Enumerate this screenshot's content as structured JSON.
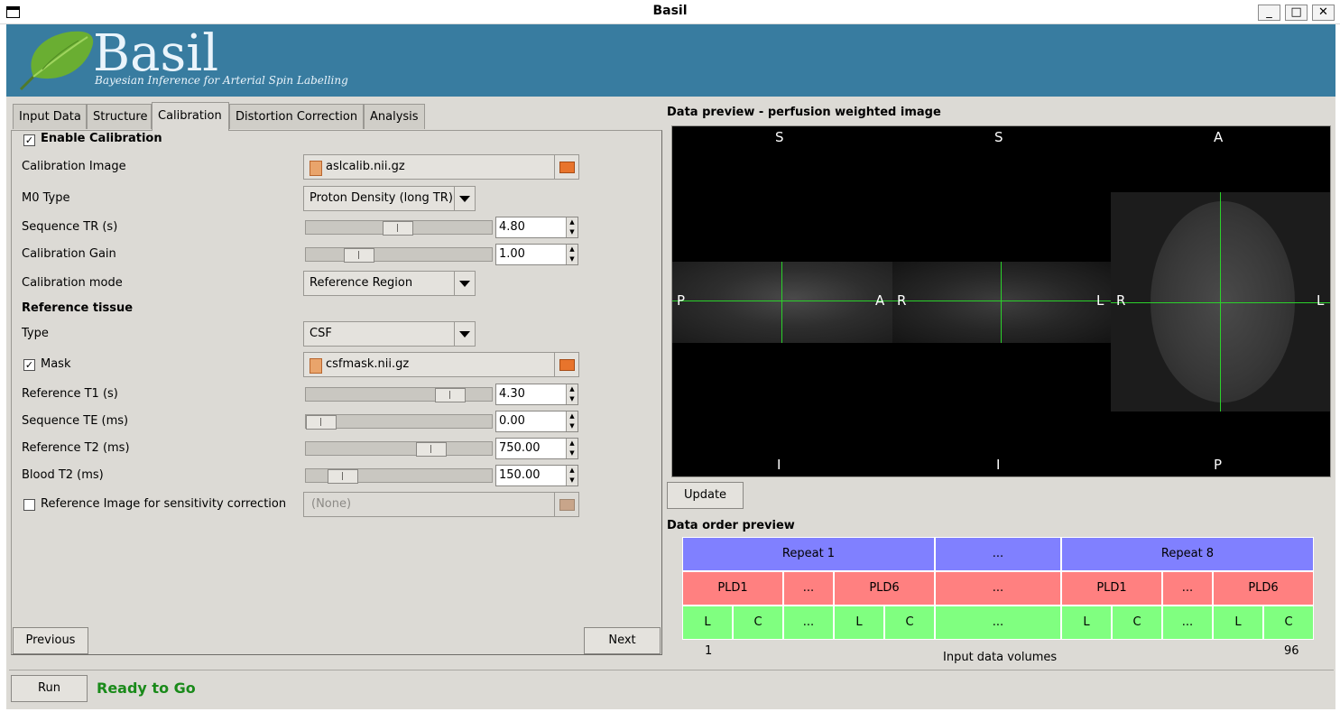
{
  "window": {
    "title": "Basil",
    "controls": {
      "minimize": "_",
      "maximize": "□",
      "close": "✕"
    }
  },
  "banner": {
    "title": "Basil",
    "subtitle": "Bayesian Inference for Arterial Spin Labelling",
    "colors": {
      "background": "#387ca0",
      "text": "#eaf4fb"
    }
  },
  "tabs": [
    {
      "label": "Input Data",
      "active": false
    },
    {
      "label": "Structure",
      "active": false
    },
    {
      "label": "Calibration",
      "active": true
    },
    {
      "label": "Distortion Correction",
      "active": false
    },
    {
      "label": "Analysis",
      "active": false
    }
  ],
  "calibration": {
    "enable": {
      "label": "Enable Calibration",
      "checked": true
    },
    "calibration_image": {
      "label": "Calibration Image",
      "value": "aslcalib.nii.gz"
    },
    "m0_type": {
      "label": "M0 Type",
      "value": "Proton Density (long TR)"
    },
    "sequence_tr": {
      "label": "Sequence TR (s)",
      "value": "4.80",
      "slider_fraction": 0.49
    },
    "calibration_gain": {
      "label": "Calibration Gain",
      "value": "1.00",
      "slider_fraction": 0.24
    },
    "calibration_mode": {
      "label": "Calibration mode",
      "value": "Reference Region"
    },
    "reference_tissue_heading": "Reference tissue",
    "type": {
      "label": "Type",
      "value": "CSF"
    },
    "mask": {
      "label": "Mask",
      "checked": true,
      "value": "csfmask.nii.gz"
    },
    "reference_t1": {
      "label": "Reference T1 (s)",
      "value": "4.30",
      "slider_fraction": 0.82
    },
    "sequence_te": {
      "label": "Sequence TE (ms)",
      "value": "0.00",
      "slider_fraction": 0.0
    },
    "reference_t2": {
      "label": "Reference T2 (ms)",
      "value": "750.00",
      "slider_fraction": 0.7
    },
    "blood_t2": {
      "label": "Blood T2 (ms)",
      "value": "150.00",
      "slider_fraction": 0.14
    },
    "reference_image_sensitivity": {
      "label": "Reference Image for sensitivity correction",
      "checked": false,
      "value": "(None)"
    }
  },
  "nav": {
    "previous": "Previous",
    "next": "Next"
  },
  "preview": {
    "title": "Data preview - perfusion weighted image",
    "orientation_labels": {
      "sag_top": "S",
      "sag_bottom": "I",
      "sag_left": "P",
      "sag_right": "A",
      "cor_top": "S",
      "cor_bottom": "I",
      "cor_left": "R",
      "cor_right": "L",
      "ax_top": "A",
      "ax_bottom": "P",
      "ax_left": "R",
      "ax_right": "L"
    },
    "update_button": "Update"
  },
  "data_order": {
    "title": "Data order preview",
    "repeats": [
      "Repeat 1",
      "...",
      "Repeat 8"
    ],
    "plds": [
      "PLD1",
      "...",
      "PLD6",
      "...",
      "PLD1",
      "...",
      "PLD6"
    ],
    "label_control": [
      "L",
      "C",
      "...",
      "L",
      "C",
      "...",
      "L",
      "C",
      "...",
      "L",
      "C"
    ],
    "axis_start": "1",
    "axis_end": "96",
    "axis_label": "Input data volumes",
    "colors": {
      "repeat": "#8080ff",
      "pld": "#ff8080",
      "label_control": "#80ff80"
    }
  },
  "status": {
    "run_button": "Run",
    "message": "Ready to Go",
    "message_color": "#1a8a1a"
  }
}
